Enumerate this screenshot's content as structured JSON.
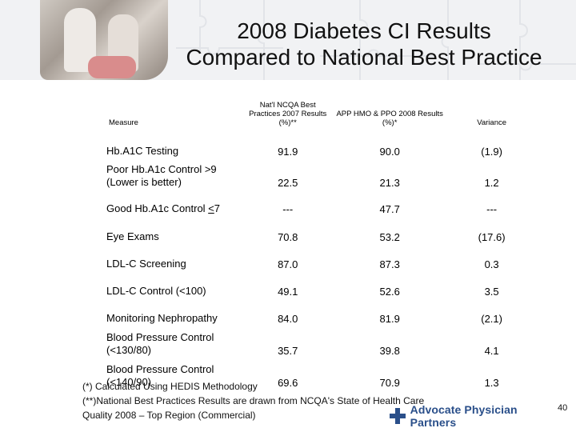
{
  "title": {
    "line1": "2008 Diabetes CI Results",
    "line2": "Compared to National Best Practice"
  },
  "table": {
    "headers": {
      "measure": "Measure",
      "col1": "Nat'l NCQA Best Practices 2007 Results (%)**",
      "col2": "APP HMO & PPO 2008 Results (%)*",
      "col3": "Variance"
    },
    "rows": [
      {
        "measure": "Hb.A1C Testing",
        "best": "91.9",
        "app": "90.0",
        "variance": "(1.9)"
      },
      {
        "measure": "Poor Hb.A1c Control >9 (Lower is better)",
        "best": "22.5",
        "app": "21.3",
        "variance": "1.2"
      },
      {
        "measure_prefix": "Good Hb.A1c Control ",
        "measure_under": "<",
        "measure_suffix": "7",
        "best": "---",
        "app": "47.7",
        "variance": "---"
      },
      {
        "measure": "Eye Exams",
        "best": "70.8",
        "app": "53.2",
        "variance": "(17.6)"
      },
      {
        "measure": "LDL-C Screening",
        "best": "87.0",
        "app": "87.3",
        "variance": "0.3"
      },
      {
        "measure": "LDL-C Control (<100)",
        "best": "49.1",
        "app": "52.6",
        "variance": "3.5"
      },
      {
        "measure": "Monitoring Nephropathy",
        "best": "84.0",
        "app": "81.9",
        "variance": "(2.1)"
      },
      {
        "measure": "Blood Pressure Control (<130/80)",
        "best": "35.7",
        "app": "39.8",
        "variance": "4.1"
      },
      {
        "measure": "Blood Pressure Control (<140/90)",
        "best": "69.6",
        "app": "70.9",
        "variance": "1.3"
      }
    ]
  },
  "footnotes": [
    "(*) Calculated Using HEDIS Methodology",
    "(**)National Best Practices Results are drawn from NCQA's State of Health Care",
    "Quality 2008 – Top Region (Commercial)"
  ],
  "logo": {
    "text": "Advocate Physician Partners",
    "icon": "cross-icon",
    "color": "#2a4f8a"
  },
  "page_number": "40"
}
